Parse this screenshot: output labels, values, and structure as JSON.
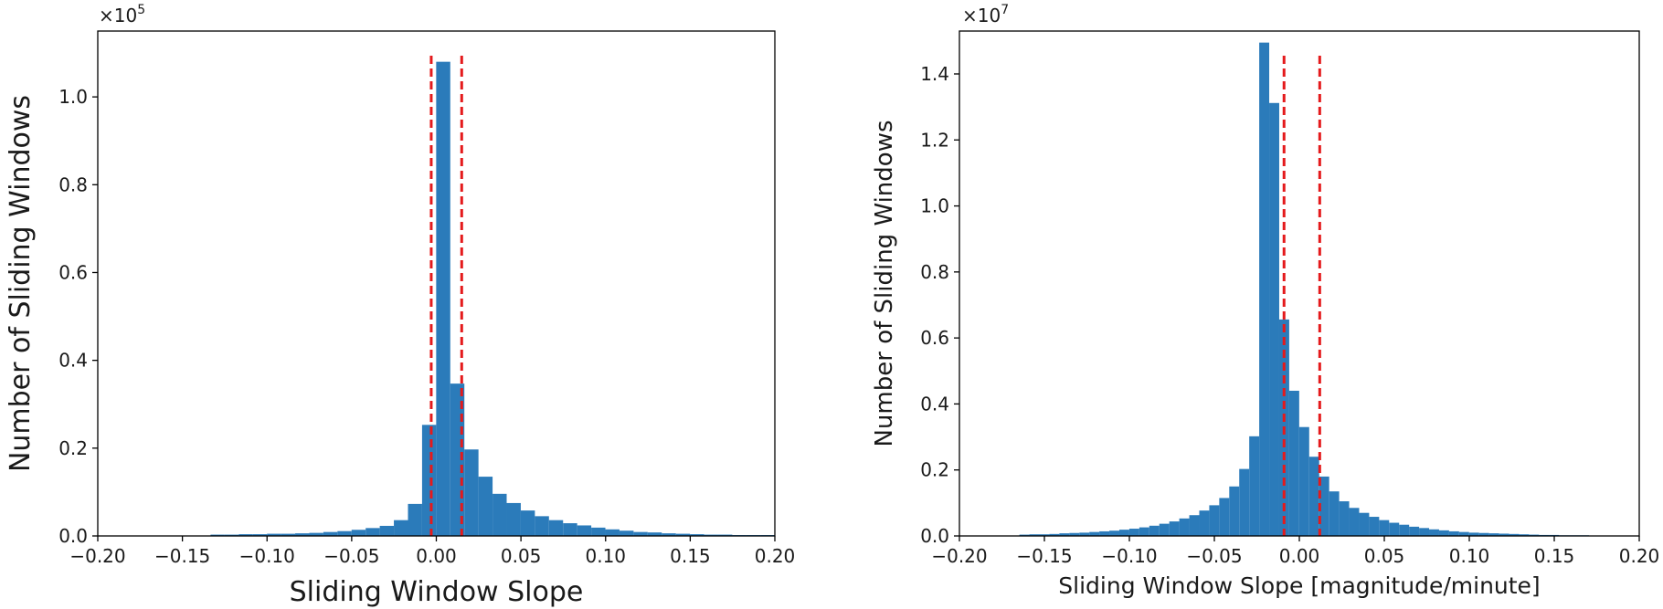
{
  "colors": {
    "bar": "#2b7bba",
    "threshold": "#e41a1c",
    "axis": "#000000"
  },
  "chart_data": [
    {
      "type": "bar",
      "xlabel": "Sliding Window Slope",
      "ylabel": "Number of Sliding Windows",
      "y_multiplier_base": "×10",
      "y_multiplier_exp": "5",
      "xlim": [
        -0.2,
        0.2
      ],
      "ylim": [
        0,
        1.15
      ],
      "xticks": [
        -0.2,
        -0.15,
        -0.1,
        -0.05,
        0.0,
        0.05,
        0.1,
        0.15,
        0.2
      ],
      "xtick_labels": [
        "−0.20",
        "−0.15",
        "−0.10",
        "−0.05",
        "0.00",
        "0.05",
        "0.10",
        "0.15",
        "0.20"
      ],
      "yticks": [
        0.0,
        0.2,
        0.4,
        0.6,
        0.8,
        1.0
      ],
      "ytick_labels": [
        "0.0",
        "0.2",
        "0.4",
        "0.6",
        "0.8",
        "1.0"
      ],
      "bin_width": 0.00833,
      "bin_start": -0.2,
      "values": [
        0,
        0,
        0,
        0,
        0,
        0,
        0,
        0,
        0.003,
        0.003,
        0.004,
        0.004,
        0.005,
        0.005,
        0.006,
        0.007,
        0.009,
        0.011,
        0.014,
        0.018,
        0.023,
        0.036,
        0.073,
        0.253,
        1.08,
        0.347,
        0.197,
        0.135,
        0.096,
        0.075,
        0.058,
        0.045,
        0.036,
        0.029,
        0.024,
        0.019,
        0.015,
        0.012,
        0.009,
        0.008,
        0.006,
        0.005,
        0.004,
        0.003,
        0.003,
        0.002,
        0.002,
        0.002
      ],
      "thresholds": [
        -0.003,
        0.015
      ]
    },
    {
      "type": "bar",
      "xlabel": "Sliding Window Slope [magnitude/minute]",
      "ylabel": "Number of Sliding Windows",
      "y_multiplier_base": "×10",
      "y_multiplier_exp": "7",
      "xlim": [
        -0.2,
        0.2
      ],
      "ylim": [
        0,
        1.53
      ],
      "xticks": [
        -0.2,
        -0.15,
        -0.1,
        -0.05,
        0.0,
        0.05,
        0.1,
        0.15,
        0.2
      ],
      "xtick_labels": [
        "−0.20",
        "−0.15",
        "−0.10",
        "−0.05",
        "0.00",
        "0.05",
        "0.10",
        "0.15",
        "0.20"
      ],
      "yticks": [
        0.0,
        0.2,
        0.4,
        0.6,
        0.8,
        1.0,
        1.2,
        1.4
      ],
      "ytick_labels": [
        "0.0",
        "0.2",
        "0.4",
        "0.6",
        "0.8",
        "1.0",
        "1.2",
        "1.4"
      ],
      "bin_width": 0.00588,
      "bin_start": -0.2,
      "values": [
        0,
        0,
        0,
        0,
        0,
        0,
        0.004,
        0.005,
        0.005,
        0.006,
        0.008,
        0.009,
        0.01,
        0.012,
        0.014,
        0.016,
        0.019,
        0.022,
        0.026,
        0.031,
        0.037,
        0.044,
        0.053,
        0.063,
        0.077,
        0.093,
        0.115,
        0.15,
        0.203,
        0.302,
        1.495,
        1.312,
        0.656,
        0.44,
        0.33,
        0.24,
        0.18,
        0.135,
        0.105,
        0.085,
        0.07,
        0.058,
        0.048,
        0.04,
        0.034,
        0.028,
        0.024,
        0.02,
        0.017,
        0.014,
        0.012,
        0.01,
        0.009,
        0.008,
        0.007,
        0.006,
        0.005,
        0.004,
        0.003,
        0.003,
        0.002,
        0.002,
        0.002,
        0.001,
        0.001,
        0.001,
        0.001,
        0.001
      ],
      "thresholds": [
        -0.009,
        0.012
      ]
    }
  ]
}
